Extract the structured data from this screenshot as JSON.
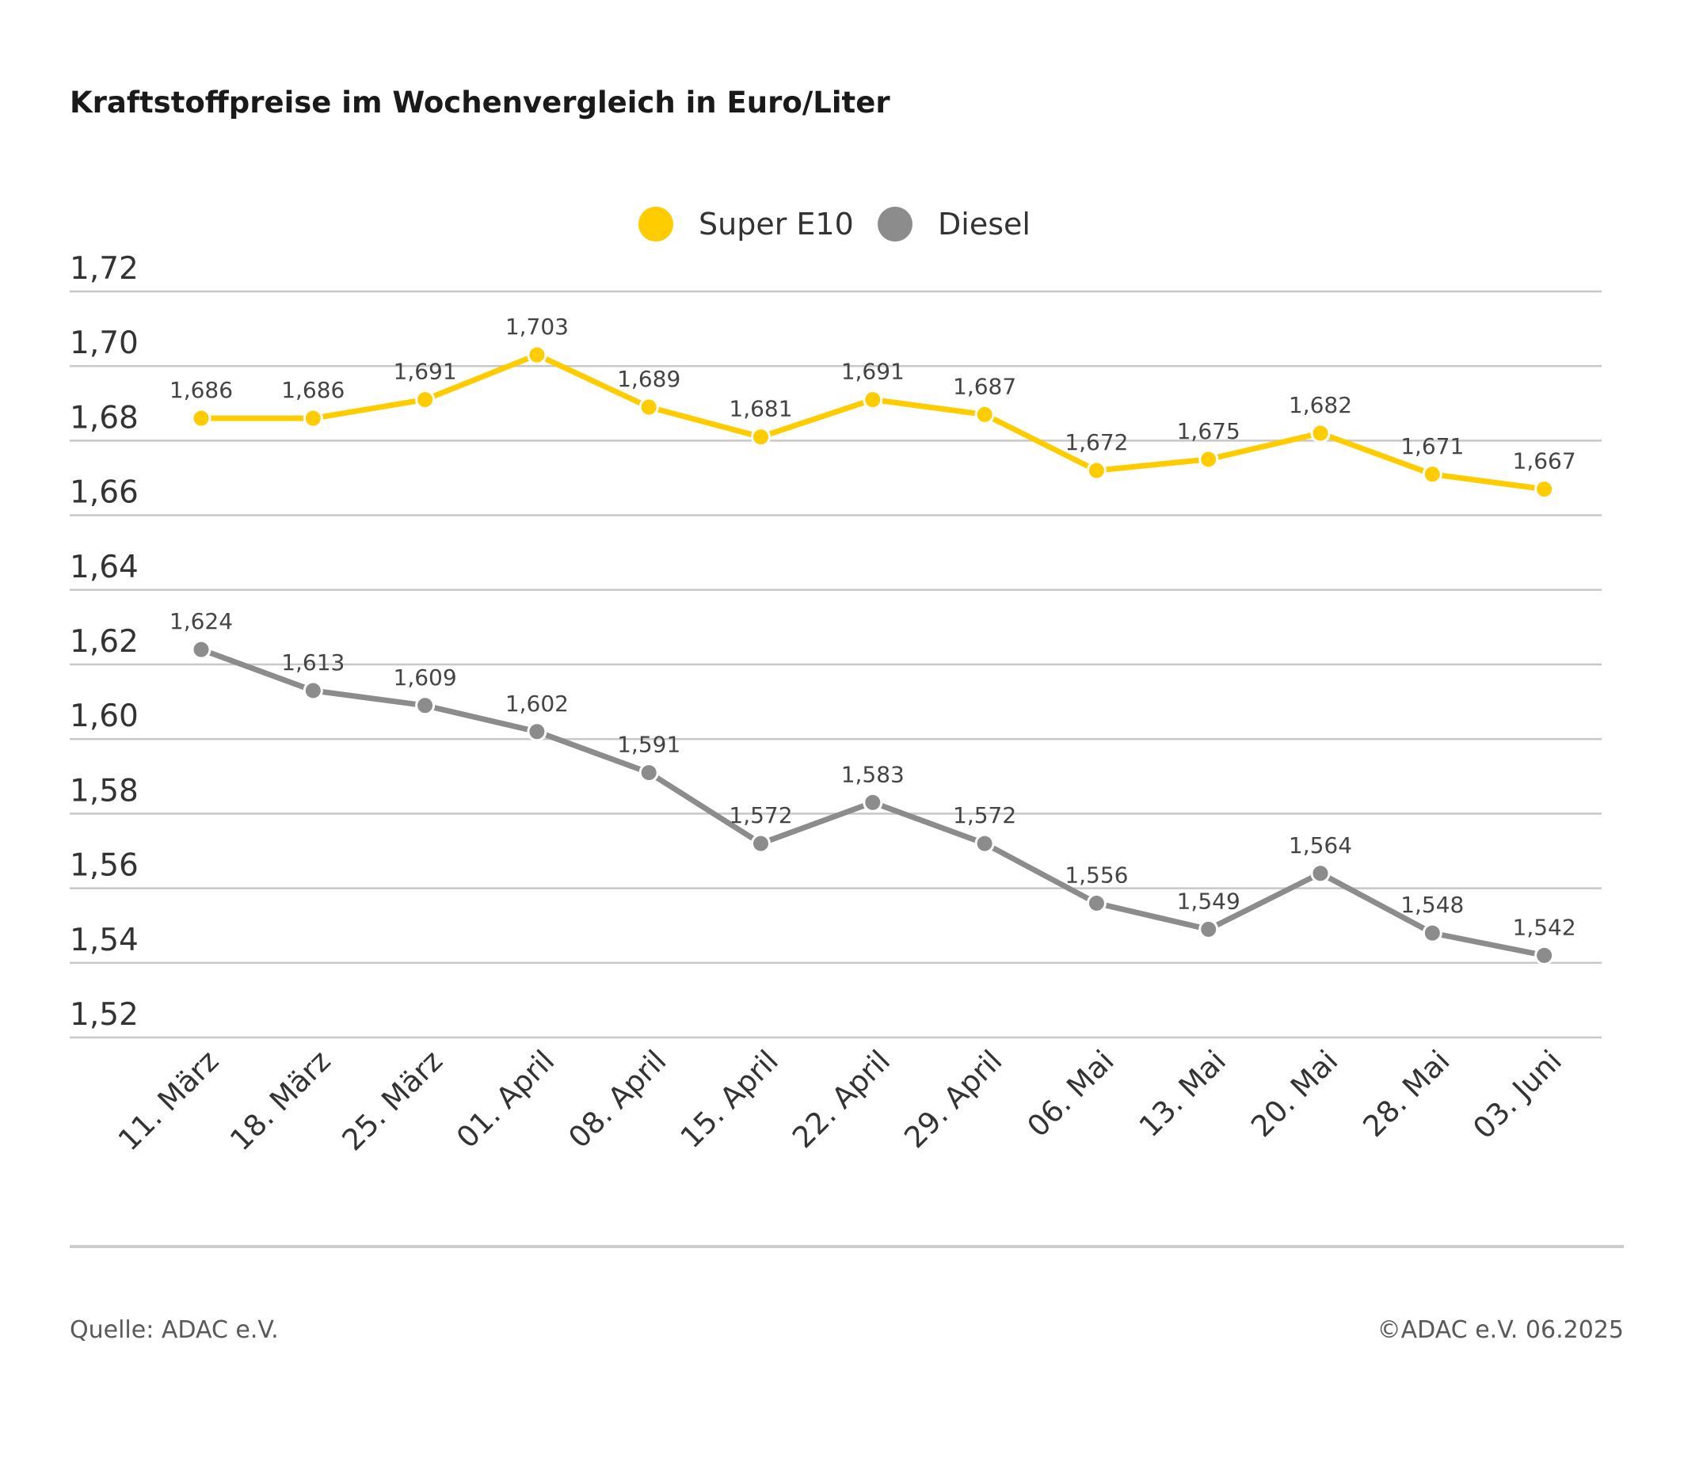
{
  "title": "Kraftstoffpreise im Wochenvergleich in Euro/Liter",
  "footer": {
    "source": "Quelle: ADAC e.V.",
    "copyright": "©ADAC e.V. 06.2025"
  },
  "chart_data": {
    "type": "line",
    "title": "Kraftstoffpreise im Wochenvergleich in Euro/Liter",
    "xlabel": "",
    "ylabel": "",
    "ylim": [
      1.52,
      1.72
    ],
    "yticks": [
      "1,52",
      "1,54",
      "1,56",
      "1,58",
      "1,60",
      "1,62",
      "1,64",
      "1,66",
      "1,68",
      "1,70",
      "1,72"
    ],
    "yticks_values": [
      1.52,
      1.54,
      1.56,
      1.58,
      1.6,
      1.62,
      1.64,
      1.66,
      1.68,
      1.7,
      1.72
    ],
    "grid": true,
    "legend_position": "top-center",
    "categories": [
      "11. März",
      "18. März",
      "25. März",
      "01. April",
      "08. April",
      "15. April",
      "22. April",
      "29. April",
      "06. Mai",
      "13. Mai",
      "20. Mai",
      "28. Mai",
      "03. Juni"
    ],
    "series": [
      {
        "name": "Super E10",
        "color": "#FFCC00",
        "values": [
          1.686,
          1.686,
          1.691,
          1.703,
          1.689,
          1.681,
          1.691,
          1.687,
          1.672,
          1.675,
          1.682,
          1.671,
          1.667
        ],
        "labels": [
          "1,686",
          "1,686",
          "1,691",
          "1,703",
          "1,689",
          "1,681",
          "1,691",
          "1,687",
          "1,672",
          "1,675",
          "1,682",
          "1,671",
          "1,667"
        ]
      },
      {
        "name": "Diesel",
        "color": "#8C8C8C",
        "values": [
          1.624,
          1.613,
          1.609,
          1.602,
          1.591,
          1.572,
          1.583,
          1.572,
          1.556,
          1.549,
          1.564,
          1.548,
          1.542
        ],
        "labels": [
          "1,624",
          "1,613",
          "1,609",
          "1,602",
          "1,591",
          "1,572",
          "1,583",
          "1,572",
          "1,556",
          "1,549",
          "1,564",
          "1,548",
          "1,542"
        ]
      }
    ]
  }
}
